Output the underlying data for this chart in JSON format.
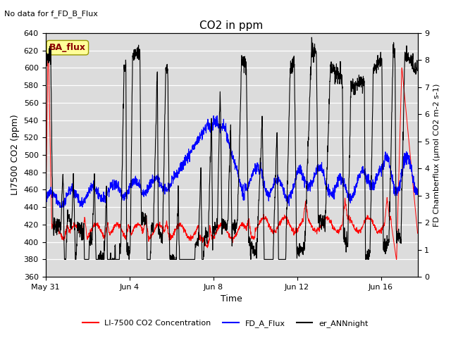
{
  "title": "CO2 in ppm",
  "top_left_text": "No data for f_FD_B_Flux",
  "xlabel": "Time",
  "ylabel_left": "LI7500 CO2 (ppm)",
  "ylabel_right": "FD Chamberflux (μmol CO2 m-2 s-1)",
  "ylim_left": [
    360,
    640
  ],
  "ylim_right": [
    0.0,
    9.0
  ],
  "yticks_left": [
    360,
    380,
    400,
    420,
    440,
    460,
    480,
    500,
    520,
    540,
    560,
    580,
    600,
    620,
    640
  ],
  "yticks_right": [
    0.0,
    1.0,
    2.0,
    3.0,
    4.0,
    5.0,
    6.0,
    7.0,
    8.0,
    9.0
  ],
  "xtick_labels": [
    "May 31",
    "Jun 4",
    "Jun 8",
    "Jun 12",
    "Jun 16"
  ],
  "annotation_text": "BA_flux",
  "annotation_color": "#8B0000",
  "annotation_bg": "#FFFF99",
  "bg_color": "#DCDCDC",
  "line_colors": {
    "red": "#FF0000",
    "blue": "#0000FF",
    "black": "#000000"
  },
  "legend_labels": [
    "LI-7500 CO2 Concentration",
    "FD_A_Flux",
    "er_ANNnight"
  ],
  "figsize": [
    6.4,
    4.8
  ],
  "dpi": 100
}
